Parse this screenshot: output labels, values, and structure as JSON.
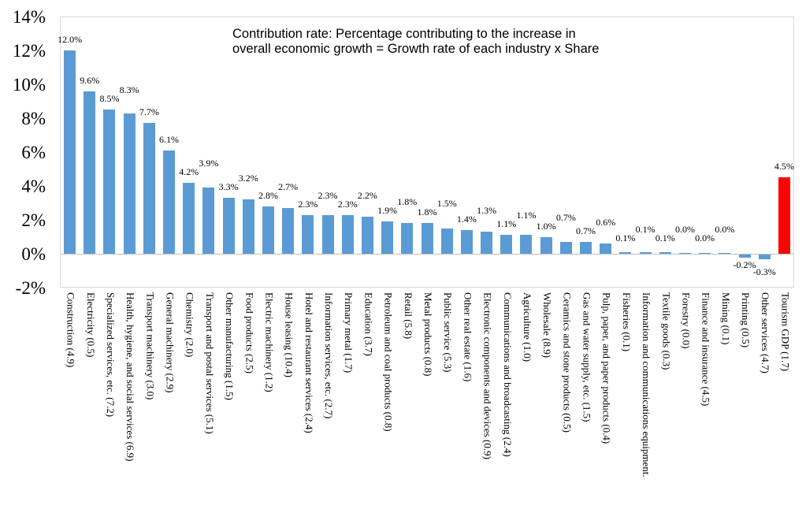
{
  "chart_data": {
    "type": "bar",
    "title": "Contribution rate: Percentage contributing to the increase in overall economic growth = Growth rate of each industry x Share",
    "title_lines": [
      "Contribution rate: Percentage contributing to the increase in",
      "overall economic growth = Growth rate of each industry x Share"
    ],
    "categories": [
      "Construction (4.9)",
      "Electricity (0.5)",
      "Specialized services, etc. (7.2)",
      "Health, hygiene, and social services (6.9)",
      "Transport machinery (3.0)",
      "General machinery (2.9)",
      "Chemistry (2.0)",
      "Transport and postal services (5.1)",
      "Other manufacturing (1.5)",
      "Food products (2.5)",
      "Electric machinery (1.2)",
      "House leasing (10.4)",
      "Hotel and restaurant services (2.4)",
      "Information services, etc. (2.7)",
      "Primary metal (1.7)",
      "Education (3.7)",
      "Petroleum and coal products (0.8)",
      "Retail (5.8)",
      "Metal products (0.8)",
      "Public service (5.3)",
      "Other real estate (1.6)",
      "Electronic components and devices (0.9)",
      "Communications and broadcasting (2.4)",
      "Agriculture (1.0)",
      "Wholesale (8.9)",
      "Ceramics and stone products (0.5)",
      "Gas and water supply, etc. (1.5)",
      "Pulp, paper, and paper products (0.4)",
      "Fisheries (0.1)",
      "Information and communications equipment.",
      "Textile goods (0.3)",
      "Forestry (0.0)",
      "Finance and insurance (4.5)",
      "Mining (0.1)",
      "Printing (0.5)",
      "Other services (4.7)",
      "Tourism GDP (1.7)"
    ],
    "values": [
      12.0,
      9.6,
      8.5,
      8.3,
      7.7,
      6.1,
      4.2,
      3.9,
      3.3,
      3.2,
      2.8,
      2.7,
      2.3,
      2.3,
      2.3,
      2.2,
      1.9,
      1.8,
      1.8,
      1.5,
      1.4,
      1.3,
      1.1,
      1.1,
      1.0,
      0.7,
      0.7,
      0.6,
      0.1,
      0.1,
      0.1,
      0.0,
      0.0,
      0.0,
      -0.2,
      -0.3,
      4.5
    ],
    "data_labels": [
      "12.0%",
      "9.6%",
      "8.5%",
      "8.3%",
      "7.7%",
      "6.1%",
      "4.2%",
      "3.9%",
      "3.3%",
      "3.2%",
      "2.8%",
      "2.7%",
      "2.3%",
      "2.3%",
      "2.3%",
      "2.2%",
      "1.9%",
      "1.8%",
      "1.8%",
      "1.5%",
      "1.4%",
      "1.3%",
      "1.1%",
      "1.1%",
      "1.0%",
      "0.7%",
      "0.7%",
      "0.6%",
      "0.1%",
      "0.1%",
      "0.1%",
      "0.0%",
      "0.0%",
      "0.0%",
      "-0.2%",
      "-0.3%",
      "4.5%"
    ],
    "highlight_index": 36,
    "highlight_category": "Tourism GDP (1.7)",
    "xlabel": "",
    "ylabel": "",
    "ylim": [
      -2,
      14
    ],
    "yticks": [
      14,
      12,
      10,
      8,
      6,
      4,
      2,
      0,
      -2
    ],
    "ytick_labels": [
      "14%",
      "12%",
      "10%",
      "8%",
      "6%",
      "4%",
      "2%",
      "0%",
      "-2%"
    ],
    "grid": false,
    "legend": false,
    "colors": {
      "bar": "#5B9BD5",
      "highlight_bar": "#FF0000",
      "plot_border": "#D9D9D9",
      "axis_line": "#BFBFBF",
      "text": "#000000"
    }
  }
}
